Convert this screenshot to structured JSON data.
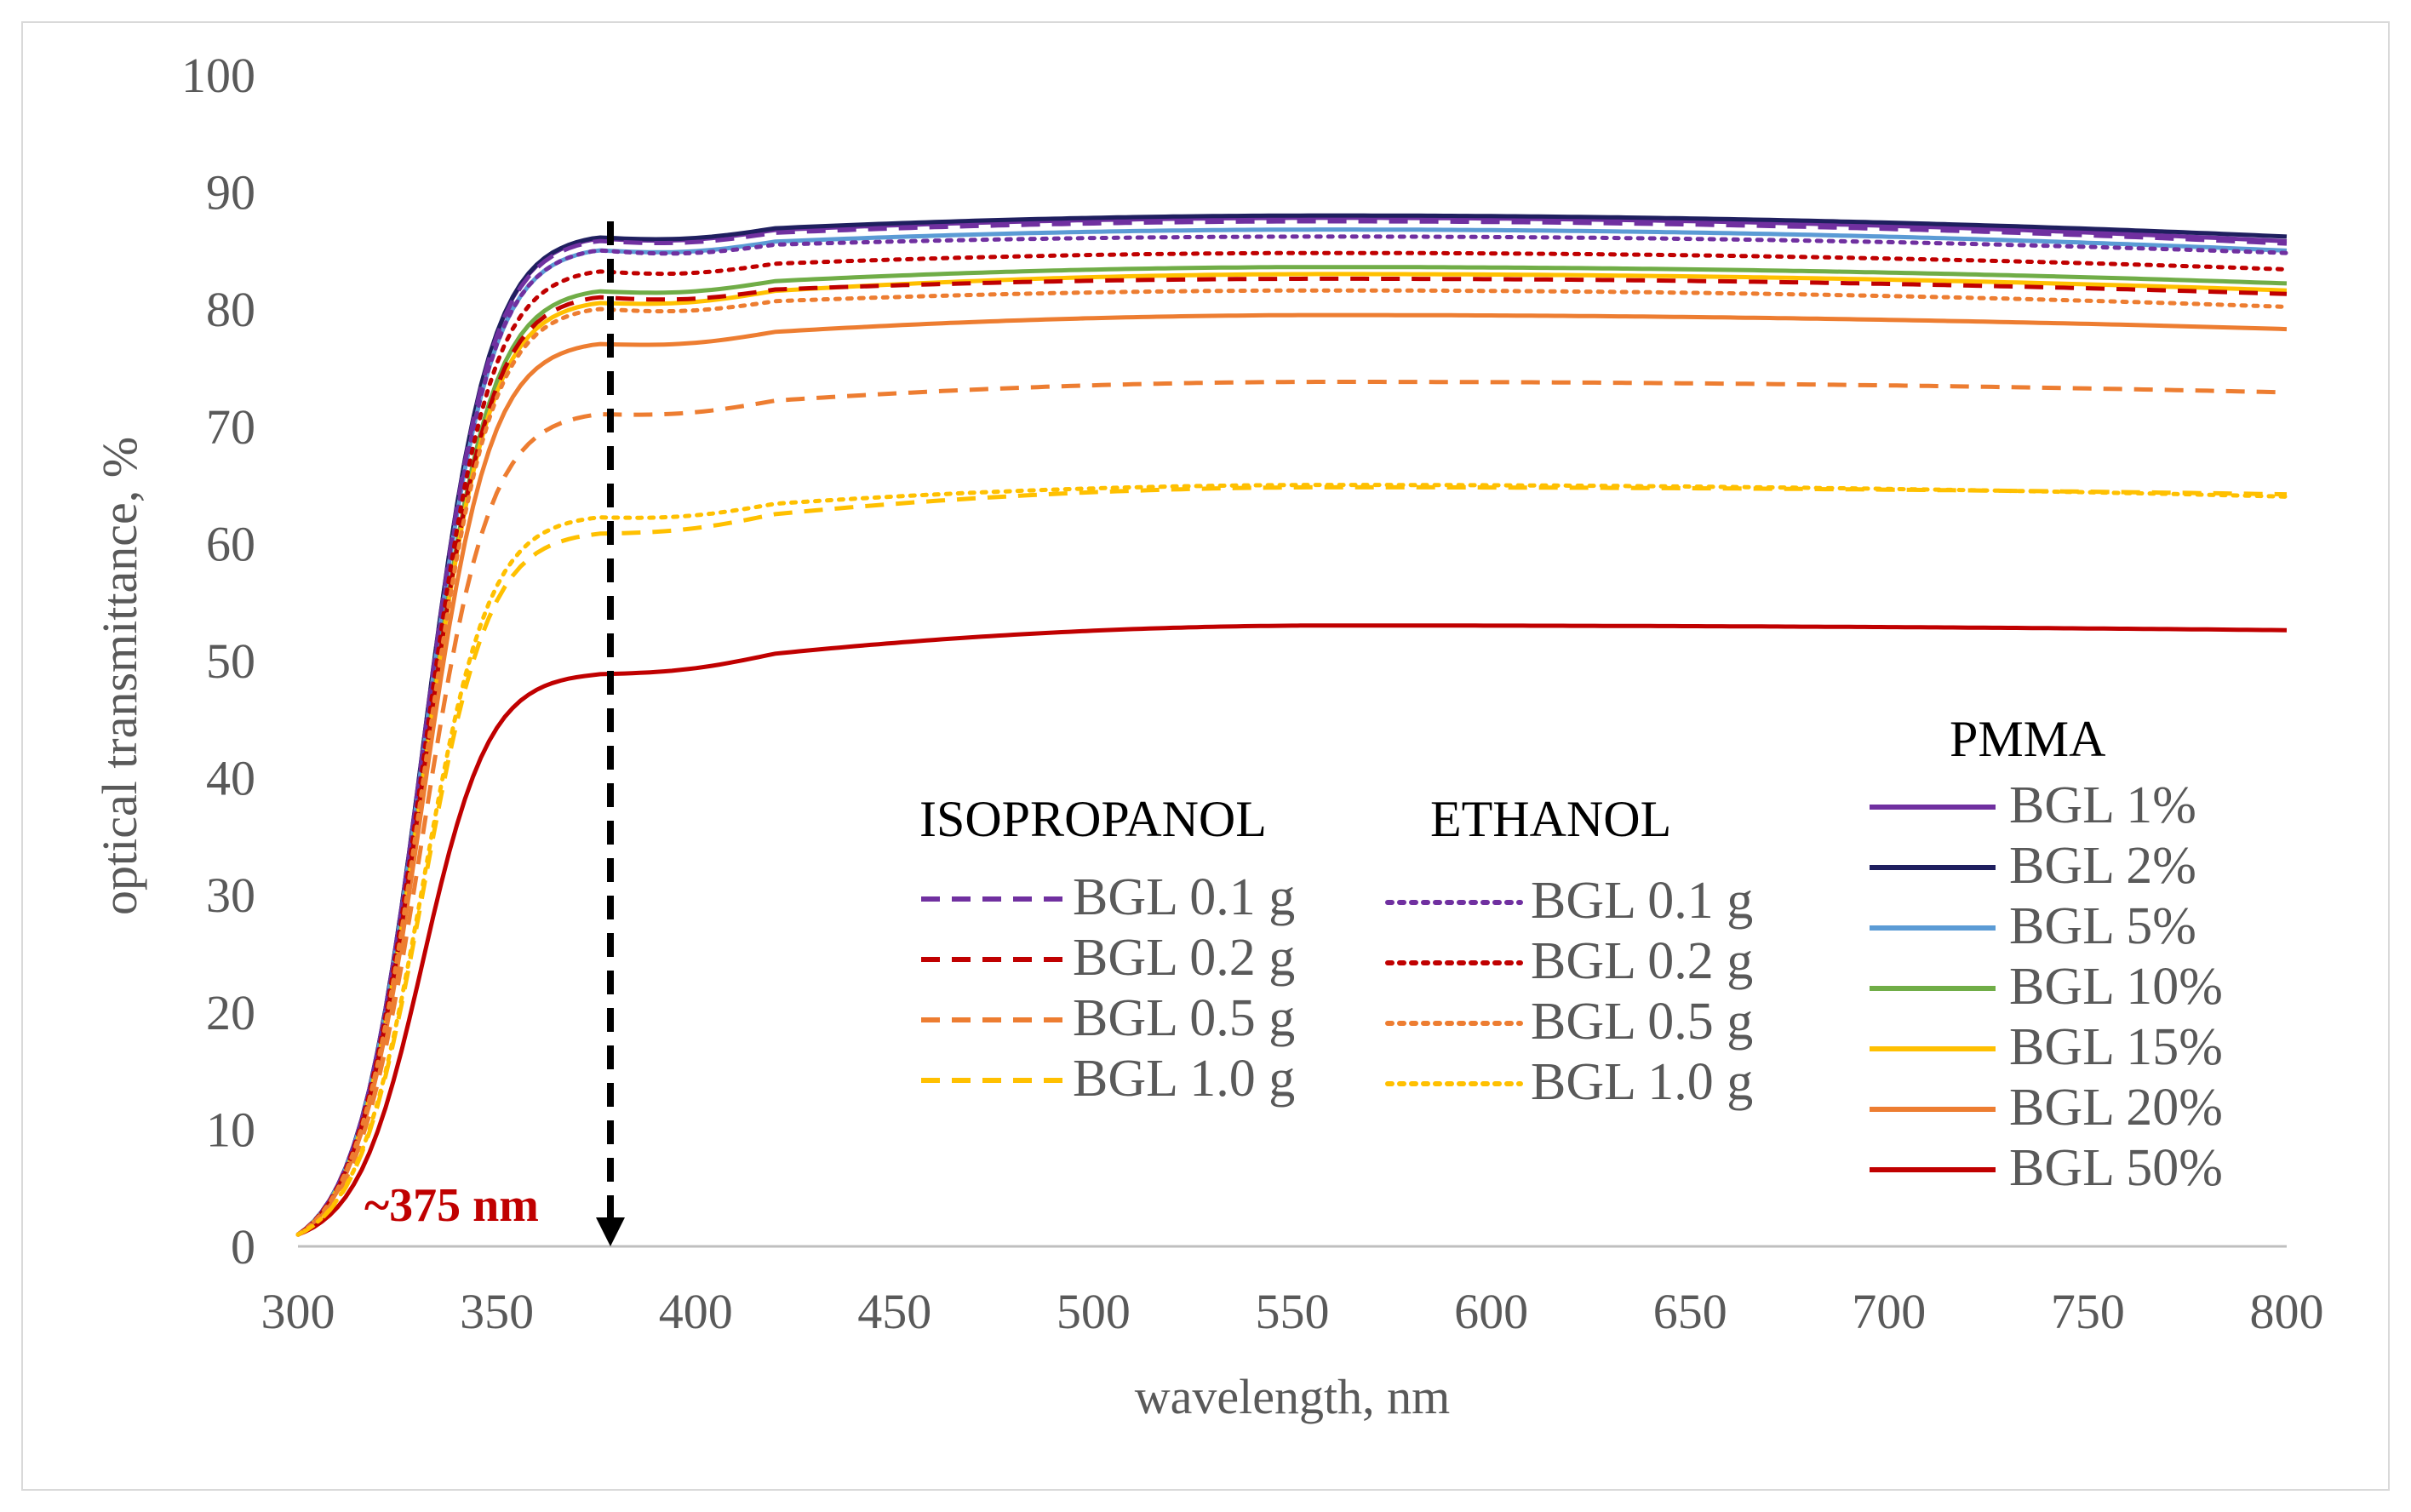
{
  "chart_data": {
    "type": "line",
    "title": "",
    "xlabel": "wavelength, nm",
    "ylabel": "optical transmittance, %",
    "xlim": [
      300,
      800
    ],
    "ylim": [
      0,
      100
    ],
    "xticks": [
      300,
      350,
      400,
      450,
      500,
      550,
      600,
      650,
      700,
      750,
      800
    ],
    "yticks": [
      0,
      10,
      20,
      30,
      40,
      50,
      60,
      70,
      80,
      90,
      100
    ],
    "grid": false,
    "annotation": {
      "text": "~375 nm",
      "x": 375
    },
    "legend_groups": [
      {
        "title": "ISOPROPANOL",
        "style": "dashed",
        "entries": [
          "BGL 0.1 g",
          "BGL 0.2 g",
          "BGL 0.5 g",
          "BGL 1.0 g"
        ]
      },
      {
        "title": "ETHANOL",
        "style": "dotted",
        "entries": [
          "BGL 0.1 g",
          "BGL 0.2 g",
          "BGL 0.5 g",
          "BGL 1.0 g"
        ]
      },
      {
        "title": "PMMA",
        "style": "solid",
        "entries": [
          "BGL 1%",
          "BGL 2%",
          "BGL 5%",
          "BGL 10%",
          "BGL 15%",
          "BGL 20%",
          "BGL 50%"
        ]
      }
    ],
    "series": [
      {
        "group": "PMMA",
        "name": "BGL 1%",
        "color": "#7030a0",
        "dash": "solid",
        "plateau": 87.8,
        "end": 85.8,
        "s375": 86.0
      },
      {
        "group": "PMMA",
        "name": "BGL 2%",
        "color": "#1f1f5f",
        "dash": "solid",
        "plateau": 88.0,
        "end": 86.2,
        "s375": 86.1
      },
      {
        "group": "PMMA",
        "name": "BGL 5%",
        "color": "#5b9bd5",
        "dash": "solid",
        "plateau": 86.8,
        "end": 85.0,
        "s375": 85.0
      },
      {
        "group": "PMMA",
        "name": "BGL 10%",
        "color": "#70ad47",
        "dash": "solid",
        "plateau": 83.6,
        "end": 82.2,
        "s375": 81.5
      },
      {
        "group": "PMMA",
        "name": "BGL 15%",
        "color": "#ffc000",
        "dash": "solid",
        "plateau": 83.0,
        "end": 81.6,
        "s375": 80.5
      },
      {
        "group": "PMMA",
        "name": "BGL 20%",
        "color": "#ed7d31",
        "dash": "solid",
        "plateau": 79.5,
        "end": 78.3,
        "s375": 77.0
      },
      {
        "group": "PMMA",
        "name": "BGL 50%",
        "color": "#c00000",
        "dash": "solid",
        "plateau": 53.0,
        "end": 52.6,
        "s375": 48.8
      },
      {
        "group": "ISOPROPANOL",
        "name": "BGL 0.1 g",
        "color": "#7030a0",
        "dash": "dashed",
        "plateau": 87.5,
        "end": 85.6,
        "s375": 85.8
      },
      {
        "group": "ISOPROPANOL",
        "name": "BGL 0.2 g",
        "color": "#c00000",
        "dash": "dashed",
        "plateau": 82.6,
        "end": 81.3,
        "s375": 81.0
      },
      {
        "group": "ISOPROPANOL",
        "name": "BGL 0.5 g",
        "color": "#ed7d31",
        "dash": "dashed",
        "plateau": 73.8,
        "end": 72.9,
        "s375": 71.0
      },
      {
        "group": "ISOPROPANOL",
        "name": "BGL 1.0 g",
        "color": "#ffc000",
        "dash": "dashed",
        "plateau": 64.8,
        "end": 64.2,
        "s375": 60.8
      },
      {
        "group": "ETHANOL",
        "name": "BGL 0.1 g",
        "color": "#7030a0",
        "dash": "dotted",
        "plateau": 86.2,
        "end": 84.8,
        "s375": 85.0
      },
      {
        "group": "ETHANOL",
        "name": "BGL 0.2 g",
        "color": "#c00000",
        "dash": "dotted",
        "plateau": 84.8,
        "end": 83.4,
        "s375": 83.2
      },
      {
        "group": "ETHANOL",
        "name": "BGL 0.5 g",
        "color": "#ed7d31",
        "dash": "dotted",
        "plateau": 81.6,
        "end": 80.2,
        "s375": 80.0
      },
      {
        "group": "ETHANOL",
        "name": "BGL 1.0 g",
        "color": "#ffc000",
        "dash": "dotted",
        "plateau": 65.0,
        "end": 64.0,
        "s375": 62.2
      }
    ]
  }
}
